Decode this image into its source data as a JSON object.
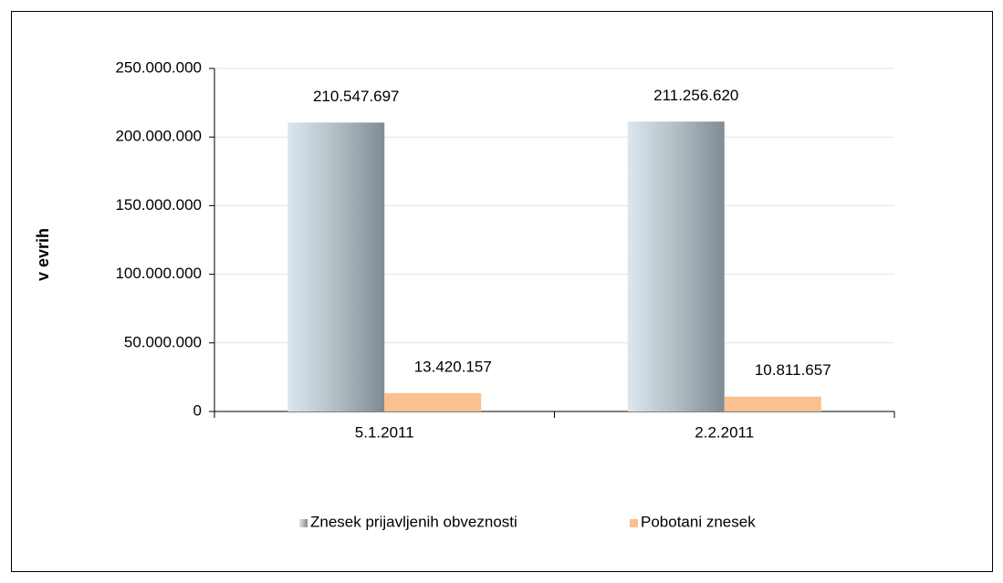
{
  "chart_data": {
    "type": "bar",
    "y_label": "v evrih",
    "categories": [
      "5.1.2011",
      "2.2.2011"
    ],
    "series": [
      {
        "name": "Znesek prijavljenih obveznosti",
        "color": "#7f8c94",
        "values": [
          210547697,
          211256620
        ],
        "value_labels": [
          "210.547.697",
          "211.256.620"
        ]
      },
      {
        "name": "Pobotani znesek",
        "color": "#fac090",
        "values": [
          13420157,
          10811657
        ],
        "value_labels": [
          "13.420.157",
          "10.811.657"
        ]
      }
    ],
    "ylim": [
      0,
      250000000
    ],
    "yticks": [
      0,
      {
        "value": 50000000,
        "label": "50.000.000"
      },
      {
        "value": 100000000,
        "label": "100.000.000"
      },
      {
        "value": 150000000,
        "label": "150.000.000"
      },
      {
        "value": 200000000,
        "label": "200.000.000"
      },
      {
        "value": 250000000,
        "label": "250.000.000"
      }
    ],
    "grid": true,
    "legend": "bottom"
  }
}
